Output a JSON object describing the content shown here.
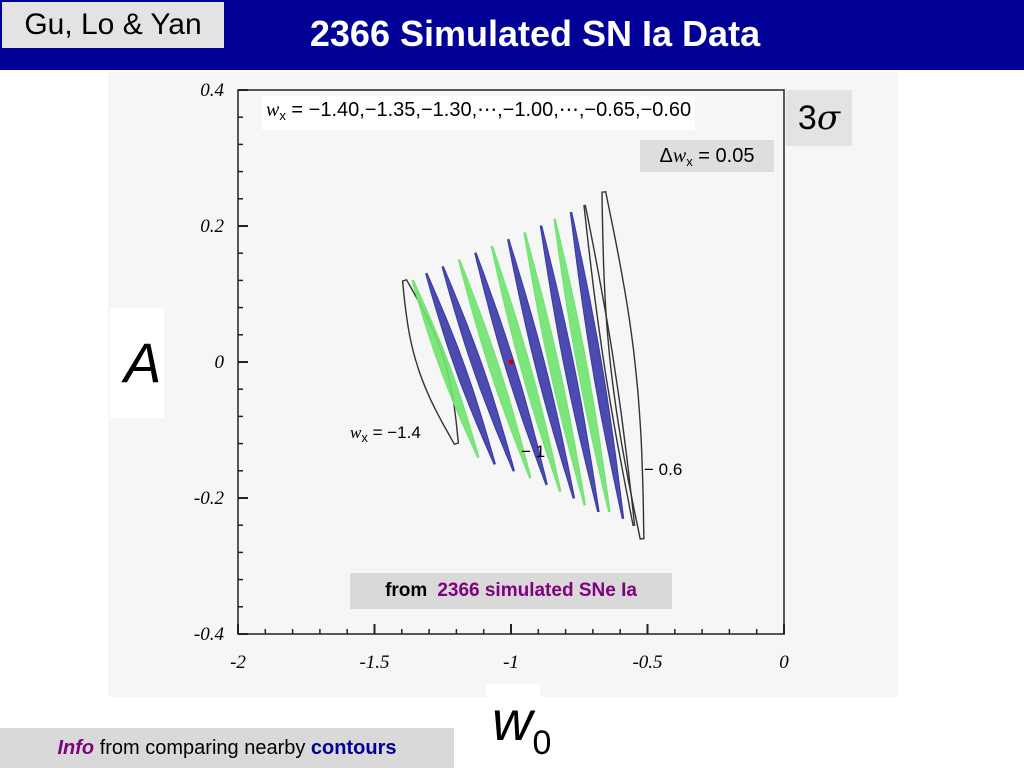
{
  "header": {
    "authors": "Gu, Lo & Yan",
    "title": "2366 Simulated SN Ia Data"
  },
  "annotations": {
    "sigma_prefix": "3",
    "sigma_symbol": "σ",
    "wx_symbol": "w",
    "wx_subscript": "x",
    "wx_values": "= −1.40,−1.35,−1.30,⋯,−1.00,⋯,−0.65,−0.60",
    "delta_symbol": "Δ",
    "delta_value": "= 0.05",
    "contour_label_left_symbol": "w",
    "contour_label_left_subscript": "x",
    "contour_label_left_value": "= −1.4",
    "contour_label_mid": "− 1",
    "contour_label_right": "− 0.6",
    "from_prefix": "from",
    "from_highlight": "2366 simulated SNe Ia"
  },
  "axes": {
    "ylabel": "A",
    "xlabel_symbol": "w",
    "xlabel_subscript": "0"
  },
  "footer": {
    "info_word": "Info",
    "info_middle": " from comparing nearby ",
    "info_end": "contours"
  },
  "colors": {
    "header_bg": "#000096",
    "green": "#6fe36f",
    "blue": "#3838a8",
    "outline": "#333333",
    "fiducial_point": "#cc0000"
  },
  "chart_data": {
    "type": "contour",
    "xlabel": "w0",
    "ylabel": "A",
    "xlim": [
      -2,
      0
    ],
    "ylim": [
      -0.4,
      0.4
    ],
    "xticks": [
      "-2",
      "-1.5",
      "-1",
      "-0.5",
      "0"
    ],
    "yticks": [
      "0.4",
      "0.2",
      "0",
      "-0.2",
      "-0.4"
    ],
    "xtick_values": [
      -2,
      -1.5,
      -1,
      -0.5,
      0
    ],
    "ytick_values": [
      0.4,
      0.2,
      0,
      -0.2,
      -0.4
    ],
    "fiducial_point": [
      -1.0,
      0.0
    ],
    "contours": [
      {
        "wx": -1.4,
        "top": [
          -1.39,
          0.12
        ],
        "bottom": [
          -1.2,
          -0.12
        ],
        "half_width": 0.05,
        "style": "outline"
      },
      {
        "wx": -1.35,
        "top": [
          -1.36,
          0.12
        ],
        "bottom": [
          -1.12,
          -0.14
        ],
        "half_width": 0.018,
        "style": "green"
      },
      {
        "wx": -1.3,
        "top": [
          -1.31,
          0.13
        ],
        "bottom": [
          -1.06,
          -0.15
        ],
        "half_width": 0.018,
        "style": "blue"
      },
      {
        "wx": -1.25,
        "top": [
          -1.25,
          0.14
        ],
        "bottom": [
          -0.99,
          -0.16
        ],
        "half_width": 0.018,
        "style": "blue"
      },
      {
        "wx": -1.2,
        "top": [
          -1.19,
          0.15
        ],
        "bottom": [
          -0.93,
          -0.17
        ],
        "half_width": 0.018,
        "style": "green"
      },
      {
        "wx": -1.15,
        "top": [
          -1.13,
          0.16
        ],
        "bottom": [
          -0.87,
          -0.18
        ],
        "half_width": 0.018,
        "style": "blue"
      },
      {
        "wx": -1.1,
        "top": [
          -1.07,
          0.17
        ],
        "bottom": [
          -0.82,
          -0.19
        ],
        "half_width": 0.018,
        "style": "green"
      },
      {
        "wx": -1.05,
        "top": [
          -1.01,
          0.18
        ],
        "bottom": [
          -0.77,
          -0.2
        ],
        "half_width": 0.018,
        "style": "blue"
      },
      {
        "wx": -1.0,
        "top": [
          -0.95,
          0.19
        ],
        "bottom": [
          -0.73,
          -0.21
        ],
        "half_width": 0.018,
        "style": "green"
      },
      {
        "wx": -0.95,
        "top": [
          -0.89,
          0.2
        ],
        "bottom": [
          -0.68,
          -0.22
        ],
        "half_width": 0.018,
        "style": "blue"
      },
      {
        "wx": -0.9,
        "top": [
          -0.84,
          0.21
        ],
        "bottom": [
          -0.64,
          -0.22
        ],
        "half_width": 0.018,
        "style": "green"
      },
      {
        "wx": -0.85,
        "top": [
          -0.78,
          0.22
        ],
        "bottom": [
          -0.59,
          -0.23
        ],
        "half_width": 0.018,
        "style": "blue"
      },
      {
        "wx": -0.8,
        "top": [
          -0.73,
          0.23
        ],
        "bottom": [
          -0.55,
          -0.24
        ],
        "half_width": 0.018,
        "style": "outline"
      },
      {
        "wx": -0.6,
        "top": [
          -0.66,
          0.25
        ],
        "bottom": [
          -0.52,
          -0.26
        ],
        "half_width": 0.045,
        "style": "outline"
      }
    ]
  }
}
